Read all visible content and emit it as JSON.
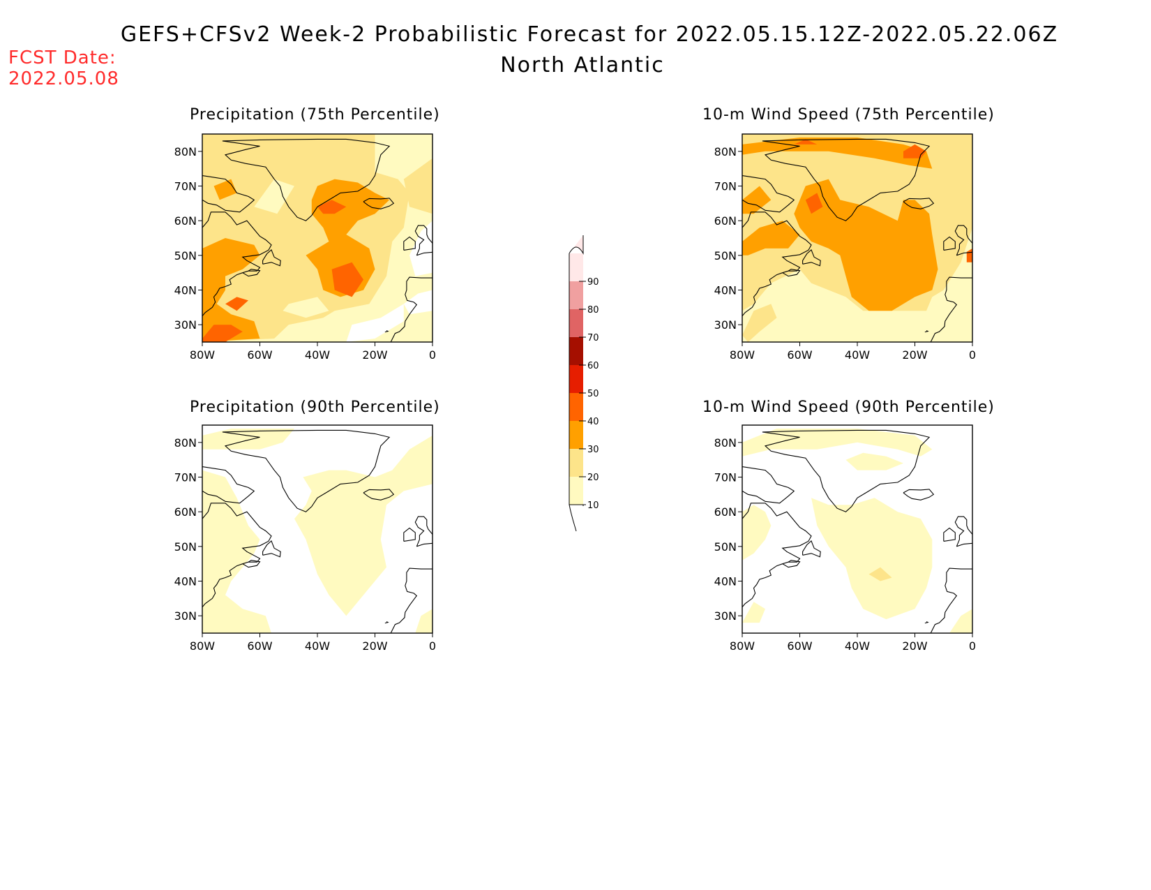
{
  "header": {
    "title": "GEFS+CFSv2 Week-2 Probabilistic Forecast for 2022.05.15.12Z-2022.05.22.06Z",
    "region": "North Atlantic",
    "fcst_label": "FCST Date:",
    "fcst_date": "2022.05.08",
    "fcst_color": "#ff2a2a"
  },
  "panels": [
    {
      "id": "precip75",
      "title": "Precipitation (75th Percentile)",
      "level": "high"
    },
    {
      "id": "wind75",
      "title": "10-m Wind Speed (75th Percentile)",
      "level": "high"
    },
    {
      "id": "precip90",
      "title": "Precipitation (90th Percentile)",
      "level": "low"
    },
    {
      "id": "wind90",
      "title": "10-m Wind Speed (90th Percentile)",
      "level": "low"
    }
  ],
  "axes": {
    "lat_ticks": [
      "80N",
      "70N",
      "60N",
      "50N",
      "40N",
      "30N"
    ],
    "lon_ticks": [
      "80W",
      "60W",
      "40W",
      "20W",
      "0"
    ],
    "lat_range": [
      25,
      85
    ],
    "lon_range": [
      -80,
      0
    ]
  },
  "colorbar": {
    "levels": [
      "10",
      "20",
      "30",
      "40",
      "50",
      "60",
      "70",
      "80",
      "90"
    ],
    "colors": [
      "#fffac0",
      "#fde48a",
      "#ffa000",
      "#ff6400",
      "#e61e00",
      "#a50f00",
      "#e06464",
      "#f0a0a0",
      "#ffe8e8"
    ]
  }
}
